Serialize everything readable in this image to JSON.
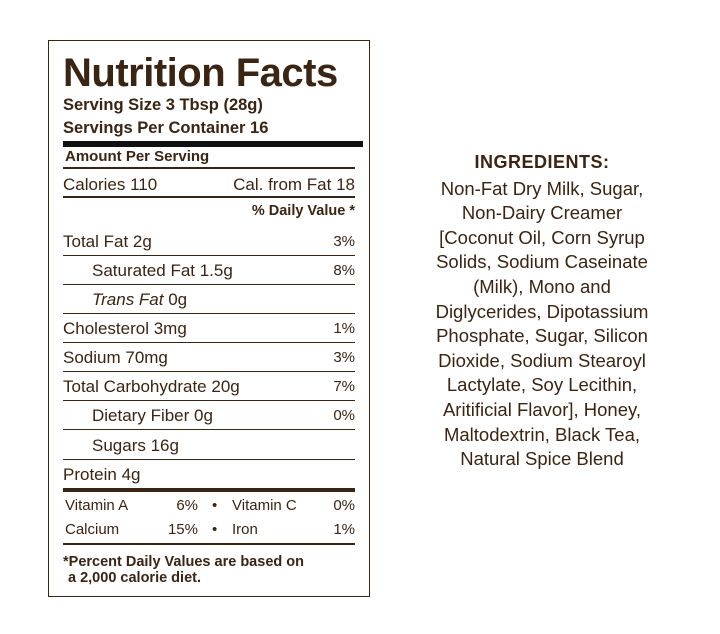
{
  "nutrition": {
    "title": "Nutrition Facts",
    "serving_size": "Serving Size 3 Tbsp (28g)",
    "servings_per_container": "Servings Per Container 16",
    "amount_per_serving": "Amount Per Serving",
    "calories": "Calories 110",
    "calories_from_fat": "Cal. from Fat 18",
    "daily_value_header": "% Daily Value *",
    "rows": [
      {
        "label": "Total Fat 2g",
        "pct": "3%"
      },
      {
        "label": "Saturated Fat 1.5g",
        "pct": "8%"
      },
      {
        "label": "Trans Fat",
        "value": " 0g",
        "pct": ""
      },
      {
        "label": "Cholesterol 3mg",
        "pct": "1%"
      },
      {
        "label": "Sodium 70mg",
        "pct": "3%"
      },
      {
        "label": "Total Carbohydrate 20g",
        "pct": "7%"
      },
      {
        "label": "Dietary Fiber 0g",
        "pct": "0%"
      },
      {
        "label": "Sugars 16g",
        "pct": ""
      },
      {
        "label": "Protein 4g",
        "pct": ""
      }
    ],
    "vitamins": [
      {
        "name": "Vitamin A",
        "pct": "6%",
        "name2": "Vitamin C",
        "pct2": "0%"
      },
      {
        "name": "Calcium",
        "pct": "15%",
        "name2": "Iron",
        "pct2": "1%"
      }
    ],
    "bullet": "•",
    "footnote_1": "*Percent Daily Values are based on",
    "footnote_2": "a 2,000 calorie diet."
  },
  "ingredients": {
    "title": "INGREDIENTS:",
    "lines": [
      "Non-Fat Dry Milk, Sugar,",
      "Non-Dairy Creamer",
      "[Coconut Oil, Corn Syrup",
      "Solids, Sodium Caseinate",
      "(Milk), Mono and",
      "Diglycerides, Dipotassium",
      "Phosphate, Sugar, Silicon",
      "Dioxide, Sodium Stearoyl",
      "Lactylate, Soy Lecithin,",
      "Aritificial Flavor], Honey,",
      "Maltodextrin, Black Tea,",
      "Natural Spice Blend"
    ]
  },
  "colors": {
    "text": "#3a2414",
    "bar": "#111111"
  }
}
